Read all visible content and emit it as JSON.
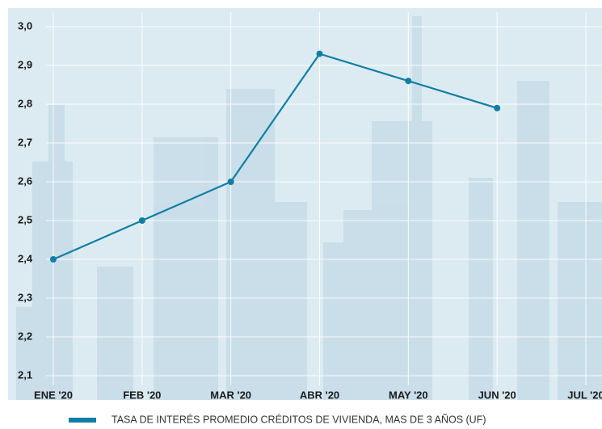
{
  "chart_data": {
    "type": "line",
    "categories": [
      "ENE '20",
      "FEB '20",
      "MAR '20",
      "ABR '20",
      "MAY '20",
      "JUN '20",
      "JUL '20"
    ],
    "series": [
      {
        "name": "TASA DE INTERÉS PROMEDIO CRÉDITOS DE VIVIENDA, MAS DE 3 AÑOS (UF)",
        "color": "#117ea3",
        "values": [
          2.4,
          2.5,
          2.6,
          2.93,
          2.86,
          2.79,
          null
        ]
      }
    ],
    "ylim": [
      2.1,
      3.0
    ],
    "yticks": [
      {
        "value": 2.1,
        "label": "2,1"
      },
      {
        "value": 2.2,
        "label": "2,2"
      },
      {
        "value": 2.3,
        "label": "2,3"
      },
      {
        "value": 2.4,
        "label": "2,4"
      },
      {
        "value": 2.5,
        "label": "2,5"
      },
      {
        "value": 2.6,
        "label": "2,6"
      },
      {
        "value": 2.7,
        "label": "2,7"
      },
      {
        "value": 2.8,
        "label": "2,8"
      },
      {
        "value": 2.9,
        "label": "2,9"
      },
      {
        "value": 3.0,
        "label": "3,0"
      }
    ],
    "grid": true
  }
}
